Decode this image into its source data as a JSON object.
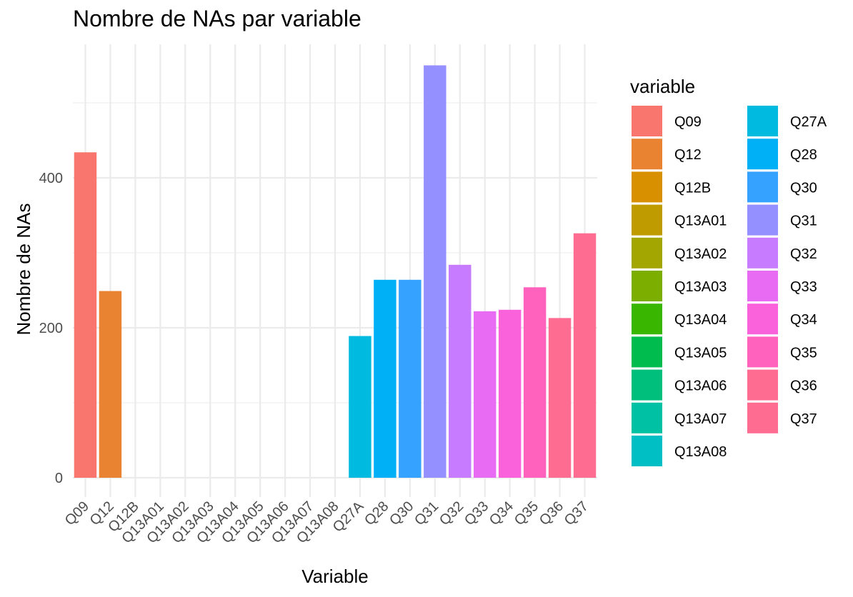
{
  "chart_data": {
    "type": "bar",
    "title": "Nombre de NAs par variable",
    "xlabel": "Variable",
    "ylabel": "Nombre de NAs",
    "ylim": [
      0,
      550
    ],
    "yticks": [
      0,
      200,
      400
    ],
    "grid": true,
    "categories": [
      "Q09",
      "Q12",
      "Q12B",
      "Q13A01",
      "Q13A02",
      "Q13A03",
      "Q13A04",
      "Q13A05",
      "Q13A06",
      "Q13A07",
      "Q13A08",
      "Q27A",
      "Q28",
      "Q30",
      "Q31",
      "Q32",
      "Q33",
      "Q34",
      "Q35",
      "Q36",
      "Q37"
    ],
    "values": [
      434,
      249,
      0,
      0,
      0,
      0,
      0,
      0,
      0,
      0,
      0,
      189,
      264,
      264,
      550,
      284,
      222,
      224,
      254,
      213,
      326
    ],
    "colors": [
      "#F8766D",
      "#EA8331",
      "#D89000",
      "#C09B00",
      "#A3A500",
      "#7CAE00",
      "#39B600",
      "#00BB4E",
      "#00BF7D",
      "#00C1A3",
      "#00BFC4",
      "#00BAE0",
      "#00B0F6",
      "#35A2FF",
      "#9590FF",
      "#C77CFF",
      "#E76BF3",
      "#FA62DB",
      "#FF62BC",
      "#FF6C91",
      "#F8766D"
    ],
    "legend": {
      "title": "variable",
      "position": "right",
      "entries": [
        "Q09",
        "Q12",
        "Q12B",
        "Q13A01",
        "Q13A02",
        "Q13A03",
        "Q13A04",
        "Q13A05",
        "Q13A06",
        "Q13A07",
        "Q13A08",
        "Q27A",
        "Q28",
        "Q30",
        "Q31",
        "Q32",
        "Q33",
        "Q34",
        "Q35",
        "Q36",
        "Q37"
      ]
    }
  }
}
